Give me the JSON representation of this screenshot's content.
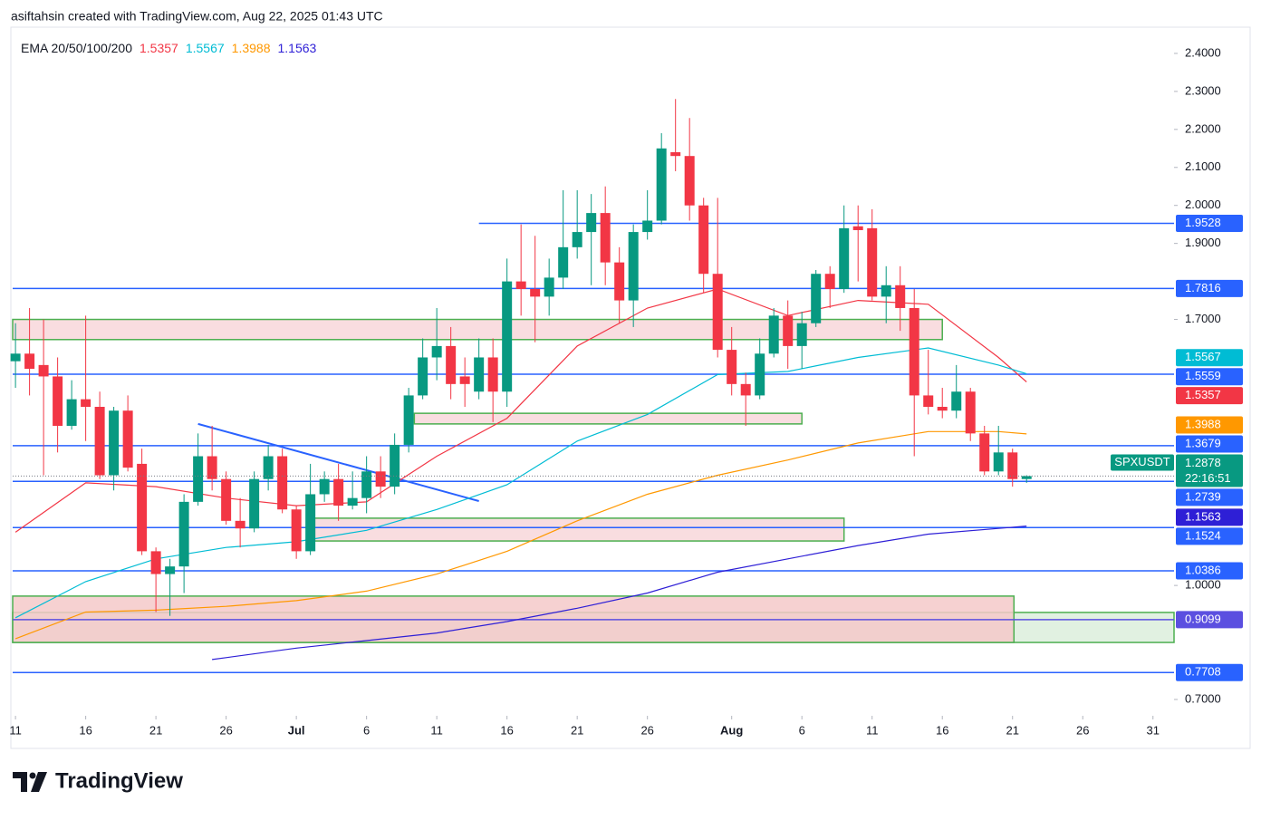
{
  "header": {
    "text": "asiftahsin created with TradingView.com, Aug 22, 2025 01:43 UTC"
  },
  "brand": "TradingView",
  "chart_data": {
    "type": "candlestick",
    "symbol": "SPXUSDT",
    "countdown": "22:16:51",
    "indicator_title": "EMA 20/50/100/200",
    "up_color": "#089981",
    "down_color": "#f23645",
    "xlim": [
      -0.2,
      82.5
    ],
    "ylim": [
      0.657,
      2.469
    ],
    "xticks": [
      {
        "value": 0,
        "label": "11"
      },
      {
        "value": 5,
        "label": "16"
      },
      {
        "value": 10,
        "label": "21"
      },
      {
        "value": 15,
        "label": "26"
      },
      {
        "value": 20,
        "label": "Jul"
      },
      {
        "value": 25,
        "label": "6"
      },
      {
        "value": 30,
        "label": "11"
      },
      {
        "value": 35,
        "label": "16"
      },
      {
        "value": 40,
        "label": "21"
      },
      {
        "value": 45,
        "label": "26"
      },
      {
        "value": 51,
        "label": "Aug"
      },
      {
        "value": 56,
        "label": "6"
      },
      {
        "value": 61,
        "label": "11"
      },
      {
        "value": 66,
        "label": "16"
      },
      {
        "value": 71,
        "label": "21"
      },
      {
        "value": 76,
        "label": "26"
      },
      {
        "value": 81,
        "label": "31"
      }
    ],
    "yticks": [
      {
        "value": 2.4,
        "label": "2.4000"
      },
      {
        "value": 2.3,
        "label": "2.3000"
      },
      {
        "value": 2.2,
        "label": "2.2000"
      },
      {
        "value": 2.1,
        "label": "2.1000"
      },
      {
        "value": 2.0,
        "label": "2.0000"
      },
      {
        "value": 1.9,
        "label": "1.9000"
      },
      {
        "value": 1.7,
        "label": "1.7000"
      },
      {
        "value": 1.0,
        "label": "1.0000"
      },
      {
        "value": 0.7,
        "label": "0.7000"
      }
    ],
    "candles": [
      {
        "open": 1.59,
        "high": 1.69,
        "low": 1.52,
        "close": 1.61
      },
      {
        "open": 1.61,
        "high": 1.73,
        "low": 1.5,
        "close": 1.57
      },
      {
        "open": 1.58,
        "high": 1.7,
        "low": 1.29,
        "close": 1.55
      },
      {
        "open": 1.55,
        "high": 1.6,
        "low": 1.35,
        "close": 1.42
      },
      {
        "open": 1.42,
        "high": 1.54,
        "low": 1.41,
        "close": 1.49
      },
      {
        "open": 1.49,
        "high": 1.71,
        "low": 1.38,
        "close": 1.47
      },
      {
        "open": 1.47,
        "high": 1.51,
        "low": 1.28,
        "close": 1.29
      },
      {
        "open": 1.29,
        "high": 1.47,
        "low": 1.25,
        "close": 1.46
      },
      {
        "open": 1.46,
        "high": 1.5,
        "low": 1.3,
        "close": 1.31
      },
      {
        "open": 1.32,
        "high": 1.36,
        "low": 1.08,
        "close": 1.09
      },
      {
        "open": 1.09,
        "high": 1.1,
        "low": 0.93,
        "close": 1.03
      },
      {
        "open": 1.03,
        "high": 1.07,
        "low": 0.92,
        "close": 1.05
      },
      {
        "open": 1.05,
        "high": 1.24,
        "low": 0.98,
        "close": 1.22
      },
      {
        "open": 1.22,
        "high": 1.4,
        "low": 1.21,
        "close": 1.34
      },
      {
        "open": 1.34,
        "high": 1.42,
        "low": 1.25,
        "close": 1.28
      },
      {
        "open": 1.28,
        "high": 1.3,
        "low": 1.16,
        "close": 1.17
      },
      {
        "open": 1.17,
        "high": 1.23,
        "low": 1.1,
        "close": 1.15
      },
      {
        "open": 1.15,
        "high": 1.3,
        "low": 1.14,
        "close": 1.28
      },
      {
        "open": 1.28,
        "high": 1.37,
        "low": 1.25,
        "close": 1.34
      },
      {
        "open": 1.34,
        "high": 1.36,
        "low": 1.19,
        "close": 1.2
      },
      {
        "open": 1.2,
        "high": 1.21,
        "low": 1.07,
        "close": 1.09
      },
      {
        "open": 1.09,
        "high": 1.32,
        "low": 1.08,
        "close": 1.24
      },
      {
        "open": 1.24,
        "high": 1.3,
        "low": 1.22,
        "close": 1.28
      },
      {
        "open": 1.28,
        "high": 1.32,
        "low": 1.17,
        "close": 1.21
      },
      {
        "open": 1.21,
        "high": 1.3,
        "low": 1.2,
        "close": 1.23
      },
      {
        "open": 1.23,
        "high": 1.34,
        "low": 1.19,
        "close": 1.3
      },
      {
        "open": 1.3,
        "high": 1.34,
        "low": 1.23,
        "close": 1.26
      },
      {
        "open": 1.26,
        "high": 1.4,
        "low": 1.24,
        "close": 1.37
      },
      {
        "open": 1.37,
        "high": 1.52,
        "low": 1.35,
        "close": 1.5
      },
      {
        "open": 1.5,
        "high": 1.65,
        "low": 1.49,
        "close": 1.6
      },
      {
        "open": 1.6,
        "high": 1.73,
        "low": 1.54,
        "close": 1.63
      },
      {
        "open": 1.63,
        "high": 1.68,
        "low": 1.49,
        "close": 1.53
      },
      {
        "open": 1.55,
        "high": 1.6,
        "low": 1.47,
        "close": 1.53
      },
      {
        "open": 1.51,
        "high": 1.65,
        "low": 1.49,
        "close": 1.6
      },
      {
        "open": 1.6,
        "high": 1.65,
        "low": 1.43,
        "close": 1.51
      },
      {
        "open": 1.51,
        "high": 1.86,
        "low": 1.47,
        "close": 1.8
      },
      {
        "open": 1.8,
        "high": 1.95,
        "low": 1.71,
        "close": 1.78
      },
      {
        "open": 1.78,
        "high": 1.92,
        "low": 1.64,
        "close": 1.76
      },
      {
        "open": 1.76,
        "high": 1.86,
        "low": 1.71,
        "close": 1.81
      },
      {
        "open": 1.81,
        "high": 2.04,
        "low": 1.78,
        "close": 1.89
      },
      {
        "open": 1.89,
        "high": 2.04,
        "low": 1.86,
        "close": 1.93
      },
      {
        "open": 1.93,
        "high": 2.03,
        "low": 1.79,
        "close": 1.98
      },
      {
        "open": 1.98,
        "high": 2.05,
        "low": 1.79,
        "close": 1.85
      },
      {
        "open": 1.85,
        "high": 1.89,
        "low": 1.69,
        "close": 1.75
      },
      {
        "open": 1.75,
        "high": 1.95,
        "low": 1.68,
        "close": 1.93
      },
      {
        "open": 1.93,
        "high": 2.04,
        "low": 1.91,
        "close": 1.96
      },
      {
        "open": 1.96,
        "high": 2.19,
        "low": 1.95,
        "close": 2.15
      },
      {
        "open": 2.14,
        "high": 2.28,
        "low": 2.09,
        "close": 2.13
      },
      {
        "open": 2.13,
        "high": 2.23,
        "low": 1.96,
        "close": 2.0
      },
      {
        "open": 2.0,
        "high": 2.02,
        "low": 1.77,
        "close": 1.82
      },
      {
        "open": 1.82,
        "high": 2.02,
        "low": 1.6,
        "close": 1.62
      },
      {
        "open": 1.62,
        "high": 1.68,
        "low": 1.5,
        "close": 1.53
      },
      {
        "open": 1.53,
        "high": 1.56,
        "low": 1.42,
        "close": 1.5
      },
      {
        "open": 1.5,
        "high": 1.65,
        "low": 1.49,
        "close": 1.61
      },
      {
        "open": 1.61,
        "high": 1.73,
        "low": 1.6,
        "close": 1.71
      },
      {
        "open": 1.71,
        "high": 1.75,
        "low": 1.57,
        "close": 1.63
      },
      {
        "open": 1.63,
        "high": 1.72,
        "low": 1.57,
        "close": 1.69
      },
      {
        "open": 1.69,
        "high": 1.83,
        "low": 1.68,
        "close": 1.82
      },
      {
        "open": 1.82,
        "high": 1.84,
        "low": 1.73,
        "close": 1.78
      },
      {
        "open": 1.78,
        "high": 2.0,
        "low": 1.77,
        "close": 1.94
      },
      {
        "open": 1.945,
        "high": 2.0,
        "low": 1.8,
        "close": 1.935
      },
      {
        "open": 1.94,
        "high": 1.99,
        "low": 1.75,
        "close": 1.76
      },
      {
        "open": 1.76,
        "high": 1.84,
        "low": 1.69,
        "close": 1.79
      },
      {
        "open": 1.79,
        "high": 1.84,
        "low": 1.67,
        "close": 1.73
      },
      {
        "open": 1.73,
        "high": 1.78,
        "low": 1.34,
        "close": 1.5
      },
      {
        "open": 1.5,
        "high": 1.62,
        "low": 1.45,
        "close": 1.47
      },
      {
        "open": 1.47,
        "high": 1.52,
        "low": 1.44,
        "close": 1.46
      },
      {
        "open": 1.46,
        "high": 1.58,
        "low": 1.44,
        "close": 1.51
      },
      {
        "open": 1.51,
        "high": 1.52,
        "low": 1.38,
        "close": 1.4
      },
      {
        "open": 1.4,
        "high": 1.42,
        "low": 1.29,
        "close": 1.3
      },
      {
        "open": 1.3,
        "high": 1.42,
        "low": 1.29,
        "close": 1.35
      },
      {
        "open": 1.35,
        "high": 1.36,
        "low": 1.26,
        "close": 1.28
      },
      {
        "open": 1.28,
        "high": 1.29,
        "low": 1.27,
        "close": 1.2878
      }
    ],
    "ema": [
      {
        "name": "EMA 20",
        "color": "#f23645",
        "x": [
          0,
          5,
          10,
          15,
          20,
          25,
          30,
          35,
          40,
          45,
          50,
          55,
          60,
          65,
          70,
          72
        ],
        "values": [
          1.14,
          1.27,
          1.26,
          1.23,
          1.21,
          1.22,
          1.34,
          1.44,
          1.63,
          1.73,
          1.78,
          1.71,
          1.75,
          1.74,
          1.6,
          1.5357
        ]
      },
      {
        "name": "EMA 50",
        "color": "#00bcd4",
        "x": [
          0,
          5,
          10,
          15,
          20,
          25,
          30,
          35,
          40,
          45,
          50,
          55,
          60,
          65,
          70,
          72
        ],
        "values": [
          0.915,
          1.01,
          1.07,
          1.1,
          1.115,
          1.145,
          1.2,
          1.265,
          1.38,
          1.45,
          1.555,
          1.563,
          1.6,
          1.625,
          1.58,
          1.5567
        ]
      },
      {
        "name": "EMA 100",
        "color": "#ff9800",
        "x": [
          0,
          5,
          10,
          15,
          20,
          25,
          30,
          35,
          40,
          45,
          50,
          55,
          60,
          65,
          70,
          72
        ],
        "values": [
          0.86,
          0.93,
          0.935,
          0.945,
          0.96,
          0.985,
          1.03,
          1.09,
          1.17,
          1.24,
          1.29,
          1.33,
          1.375,
          1.405,
          1.405,
          1.3988
        ]
      },
      {
        "name": "EMA 200",
        "color": "#2e1fd6",
        "x": [
          14,
          15,
          20,
          25,
          30,
          35,
          40,
          45,
          50,
          55,
          60,
          65,
          70,
          72
        ],
        "values": [
          0.805,
          0.81,
          0.835,
          0.855,
          0.875,
          0.905,
          0.94,
          0.98,
          1.035,
          1.07,
          1.105,
          1.135,
          1.15,
          1.1563
        ]
      }
    ],
    "levels": [
      {
        "value": 1.9528,
        "start": 33,
        "color": "#2962ff"
      },
      {
        "value": 1.7816,
        "color": "#2962ff"
      },
      {
        "value": 1.5559,
        "color": "#2962ff"
      },
      {
        "value": 1.3679,
        "color": "#2962ff"
      },
      {
        "value": 1.2739,
        "color": "#2962ff"
      },
      {
        "value": 1.1524,
        "color": "#2962ff"
      },
      {
        "value": 1.0386,
        "color": "#2962ff"
      },
      {
        "value": 0.9099,
        "color": "#5b4fe0"
      },
      {
        "value": 0.7708,
        "color": "#2962ff"
      }
    ],
    "zones": [
      {
        "top": 1.7,
        "bottom": 1.647,
        "from": -0.2,
        "to": 66,
        "fill": "#f8d7da",
        "border": "#4caf50"
      },
      {
        "top": 1.453,
        "bottom": 1.425,
        "from": 28.4,
        "to": 56,
        "fill": "#f8d7da",
        "border": "#4caf50"
      },
      {
        "top": 1.177,
        "bottom": 1.117,
        "from": 21.3,
        "to": 59,
        "fill": "#f8d7da",
        "border": "#4caf50"
      },
      {
        "top": 0.929,
        "bottom": 0.85,
        "from": -0.2,
        "to": 82.5,
        "fill": "#dcefdc",
        "border": "#4caf50"
      },
      {
        "top": 0.972,
        "bottom": 0.85,
        "from": -0.2,
        "to": 71.1,
        "fill": "#f4c9c9",
        "border": "#4caf50"
      }
    ],
    "trendline": {
      "x": [
        13,
        33
      ],
      "values": [
        1.425,
        1.222
      ],
      "color": "#2962ff"
    }
  }
}
